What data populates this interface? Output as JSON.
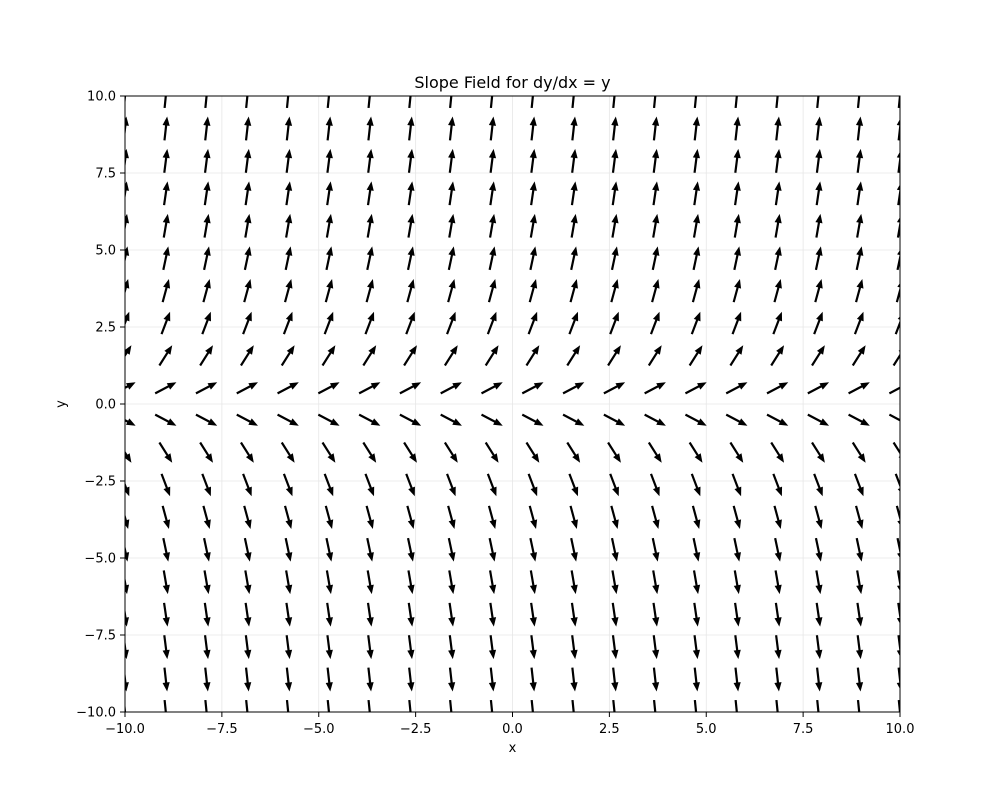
{
  "chart_data": {
    "type": "quiver",
    "title": "Slope Field for dy/dx = y",
    "xlabel": "x",
    "ylabel": "y",
    "equation": "dy/dx = y",
    "xlim": [
      -10,
      10
    ],
    "ylim": [
      -10,
      10
    ],
    "grid": true,
    "x_ticks": [
      -10.0,
      -7.5,
      -5.0,
      -2.5,
      0.0,
      2.5,
      5.0,
      7.5,
      10.0
    ],
    "y_ticks": [
      -10.0,
      -7.5,
      -5.0,
      -2.5,
      0.0,
      2.5,
      5.0,
      7.5,
      10.0
    ],
    "x_tick_labels": [
      "−10.0",
      "−7.5",
      "−5.0",
      "−2.5",
      "0.0",
      "2.5",
      "5.0",
      "7.5",
      "10.0"
    ],
    "y_tick_labels": [
      "−10.0",
      "−7.5",
      "−5.0",
      "−2.5",
      "0.0",
      "2.5",
      "5.0",
      "7.5",
      "10.0"
    ],
    "grid_x": [
      -10.0,
      -8.947,
      -7.895,
      -6.842,
      -5.789,
      -4.737,
      -3.684,
      -2.632,
      -1.579,
      -0.526,
      0.526,
      1.579,
      2.632,
      3.684,
      4.737,
      5.789,
      6.842,
      7.895,
      8.947,
      10.0
    ],
    "grid_y": [
      -10.0,
      -8.947,
      -7.895,
      -6.842,
      -5.789,
      -4.737,
      -3.684,
      -2.632,
      -1.579,
      -0.526,
      0.526,
      1.579,
      2.632,
      3.684,
      4.737,
      5.789,
      6.842,
      7.895,
      8.947,
      10.0
    ],
    "arrow_color": "#000000"
  }
}
